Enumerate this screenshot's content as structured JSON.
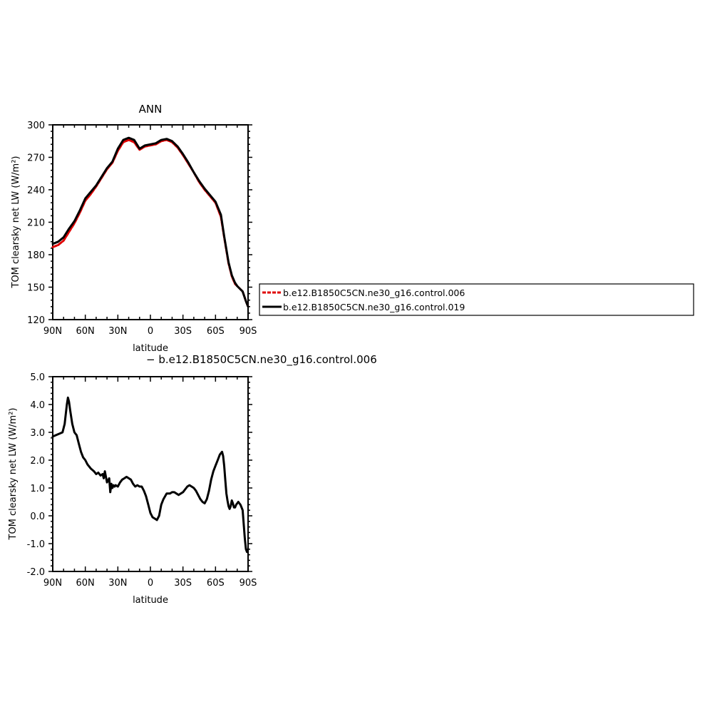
{
  "chart_data": [
    {
      "type": "line",
      "title": "ANN",
      "xlabel": "latitude",
      "ylabel": "TOM clearsky net LW (W/m²)",
      "xlim": [
        90,
        -90
      ],
      "ylim": [
        120,
        300
      ],
      "xticks": [
        90,
        60,
        30,
        0,
        -30,
        -60,
        -90
      ],
      "xtick_labels": [
        "90N",
        "60N",
        "30N",
        "0",
        "30S",
        "60S",
        "90S"
      ],
      "yticks": [
        120,
        150,
        180,
        210,
        240,
        270,
        300
      ],
      "ytick_labels": [
        "120",
        "150",
        "180",
        "210",
        "240",
        "270",
        "300"
      ],
      "legend": "right",
      "grid": false,
      "series": [
        {
          "name": "b.e12.B1850C5CN.ne30_g16.control.006",
          "color": "#e00000",
          "style": "dashed",
          "x": [
            90,
            85,
            80,
            75,
            70,
            65,
            60,
            55,
            50,
            45,
            40,
            35,
            30,
            25,
            20,
            15,
            10,
            5,
            0,
            -5,
            -10,
            -15,
            -20,
            -25,
            -30,
            -35,
            -40,
            -45,
            -50,
            -55,
            -60,
            -65,
            -68,
            -72,
            -75,
            -78,
            -80,
            -82,
            -85,
            -88,
            -90
          ],
          "y": [
            187,
            189,
            193,
            201,
            209,
            219,
            230,
            236,
            243,
            251,
            259,
            265,
            276,
            284,
            286,
            284,
            277,
            280,
            281,
            282,
            285,
            286,
            284,
            279,
            272,
            264,
            256,
            247,
            240,
            234,
            228,
            215,
            196,
            172,
            160,
            153,
            151,
            149,
            146,
            137,
            132
          ]
        },
        {
          "name": "b.e12.B1850C5CN.ne30_g16.control.019",
          "color": "#000000",
          "style": "solid",
          "x": [
            90,
            85,
            80,
            75,
            70,
            65,
            60,
            55,
            50,
            45,
            40,
            35,
            30,
            25,
            20,
            15,
            10,
            5,
            0,
            -5,
            -10,
            -15,
            -20,
            -25,
            -30,
            -35,
            -40,
            -45,
            -50,
            -55,
            -60,
            -65,
            -68,
            -72,
            -75,
            -78,
            -80,
            -82,
            -85,
            -88,
            -90
          ],
          "y": [
            190,
            192,
            196,
            204,
            211,
            221,
            232,
            238,
            244,
            252,
            260,
            266,
            278,
            286,
            288,
            286,
            278,
            281,
            282,
            283,
            286,
            287,
            285,
            280,
            273,
            265,
            256,
            248,
            241,
            235,
            229,
            217,
            197,
            173,
            161,
            154,
            151,
            149,
            146,
            137,
            132
          ]
        }
      ]
    },
    {
      "type": "line",
      "subtitle": "− b.e12.B1850C5CN.ne30_g16.control.006",
      "xlabel": "latitude",
      "ylabel": "TOM clearsky net LW (W/m²)",
      "xlim": [
        90,
        -90
      ],
      "ylim": [
        -2.0,
        5.0
      ],
      "xticks": [
        90,
        60,
        30,
        0,
        -30,
        -60,
        -90
      ],
      "xtick_labels": [
        "90N",
        "60N",
        "30N",
        "0",
        "30S",
        "60S",
        "90S"
      ],
      "yticks": [
        -2.0,
        -1.0,
        0.0,
        1.0,
        2.0,
        3.0,
        4.0,
        5.0
      ],
      "ytick_labels": [
        "-2.0",
        "-1.0",
        "0.0",
        "1.0",
        "2.0",
        "3.0",
        "4.0",
        "5.0"
      ],
      "grid": false,
      "series": [
        {
          "color": "#000000",
          "style": "solid",
          "x": [
            90,
            87,
            84,
            81,
            79,
            77,
            76,
            75,
            74,
            72,
            70,
            68,
            66,
            64,
            62,
            60,
            58,
            55,
            52,
            50,
            48,
            46,
            44,
            43,
            42,
            41,
            40,
            38,
            37,
            36,
            35,
            34,
            33,
            32,
            30,
            28,
            26,
            24,
            22,
            20,
            18,
            16,
            14,
            12,
            10,
            8,
            6,
            4,
            2,
            0,
            -2,
            -4,
            -6,
            -8,
            -10,
            -12,
            -15,
            -18,
            -20,
            -22,
            -24,
            -26,
            -28,
            -30,
            -32,
            -34,
            -36,
            -38,
            -40,
            -42,
            -44,
            -46,
            -48,
            -50,
            -52,
            -54,
            -56,
            -58,
            -60,
            -62,
            -64,
            -66,
            -67,
            -68,
            -69,
            -70,
            -71,
            -72,
            -73,
            -74,
            -75,
            -76,
            -77,
            -78,
            -79,
            -80,
            -81,
            -82,
            -83,
            -84,
            -85,
            -86,
            -87,
            -88,
            -89,
            -90
          ],
          "y": [
            2.85,
            2.9,
            2.95,
            3.0,
            3.3,
            4.0,
            4.25,
            4.1,
            3.8,
            3.3,
            3.0,
            2.9,
            2.6,
            2.3,
            2.1,
            2.0,
            1.85,
            1.7,
            1.6,
            1.5,
            1.55,
            1.45,
            1.5,
            1.35,
            1.6,
            1.4,
            1.2,
            1.35,
            0.85,
            1.15,
            1.0,
            1.1,
            1.05,
            1.1,
            1.05,
            1.2,
            1.3,
            1.35,
            1.4,
            1.35,
            1.3,
            1.15,
            1.05,
            1.1,
            1.05,
            1.05,
            0.9,
            0.7,
            0.4,
            0.1,
            -0.05,
            -0.1,
            -0.15,
            0.0,
            0.4,
            0.6,
            0.8,
            0.8,
            0.85,
            0.85,
            0.8,
            0.75,
            0.8,
            0.85,
            0.95,
            1.05,
            1.1,
            1.05,
            1.0,
            0.9,
            0.75,
            0.6,
            0.5,
            0.45,
            0.6,
            0.9,
            1.3,
            1.6,
            1.8,
            2.0,
            2.2,
            2.3,
            2.15,
            1.8,
            1.3,
            0.8,
            0.55,
            0.35,
            0.25,
            0.35,
            0.55,
            0.45,
            0.3,
            0.3,
            0.4,
            0.45,
            0.5,
            0.45,
            0.4,
            0.3,
            0.2,
            -0.3,
            -0.8,
            -1.2,
            -1.3,
            -1.2
          ]
        }
      ]
    }
  ]
}
